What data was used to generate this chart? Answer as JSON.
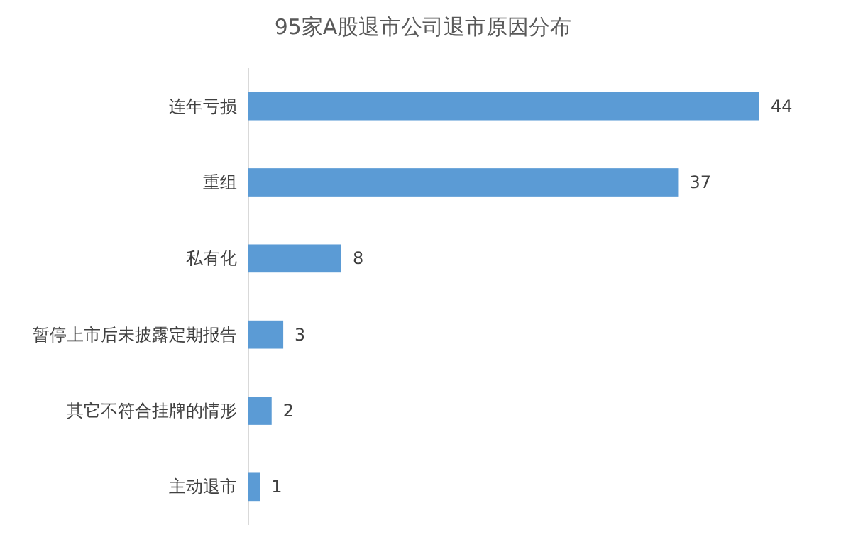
{
  "chart_data": {
    "type": "bar",
    "orientation": "horizontal",
    "title": "95家A股退市公司退市原因分布",
    "categories": [
      "连年亏损",
      "重组",
      "私有化",
      "暂停上市后未披露定期报告",
      "其它不符合挂牌的情形",
      "主动退市"
    ],
    "values": [
      44,
      37,
      8,
      3,
      2,
      1
    ],
    "color": "#5b9bd5",
    "data_labels": true
  }
}
